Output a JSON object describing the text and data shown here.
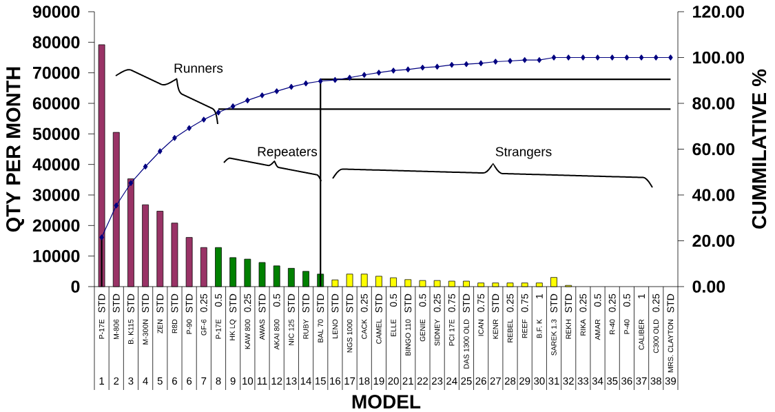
{
  "chart_data": {
    "type": "bar",
    "categories": [
      "P-17E",
      "M-806",
      "B. K115",
      "M-300N",
      "ZEN",
      "R8D",
      "P-90",
      "GF-6",
      "P-17E",
      "HK LQ",
      "KAW 800",
      "AWAS",
      "AKAI 800",
      "NIC 125",
      "RUBY",
      "BAL 70",
      "LENO",
      "NGS 1000",
      "CACK",
      "CAMEL",
      "ELLE",
      "BINGO 110",
      "GENIE",
      "SIDNEY",
      "PCI 17E",
      "DAS 1300 OLD",
      "ICAN",
      "KENR",
      "REBEL",
      "REEF",
      "B.F. K",
      "SAREK 1.3",
      "REKH",
      "RIKA",
      "AMAR",
      "R-40",
      "P-40",
      "CALIBER",
      "C300 OLD",
      "MRS. CLAYTON"
    ],
    "xlabel": "MODEL",
    "ylabel": "QTY PER MONTH",
    "y2label": "CUMMILATIVE %",
    "ylim": [
      0,
      90000
    ],
    "yticks": [
      0,
      10000,
      20000,
      30000,
      40000,
      50000,
      60000,
      70000,
      80000,
      90000
    ],
    "y2lim": [
      0,
      120
    ],
    "y2ticks": [
      {
        "value": 0,
        "label": "0.00"
      },
      {
        "value": 20,
        "label": "20.00"
      },
      {
        "value": 40,
        "label": "40.00"
      },
      {
        "value": 60,
        "label": "60.00"
      },
      {
        "value": 80,
        "label": "80.00"
      },
      {
        "value": 100,
        "label": "100.00"
      },
      {
        "value": 120,
        "label": "120.00"
      }
    ],
    "series": [
      {
        "colors": [
          "#993366",
          "#993366",
          "#993366",
          "#993366",
          "#993366",
          "#993366",
          "#993366",
          "#993366",
          "#008000",
          "#008000",
          "#008000",
          "#008000",
          "#008000",
          "#008000",
          "#008000",
          "#008000",
          "#ffff00",
          "#ffff00",
          "#ffff00",
          "#ffff00",
          "#ffff00",
          "#ffff00",
          "#ffff00",
          "#ffff00",
          "#ffff00",
          "#ffff00",
          "#ffff00",
          "#ffff00",
          "#ffff00",
          "#ffff00",
          "#ffff00",
          "#ffff00",
          "#ffff00",
          "#ffff00",
          "#ffff00",
          "#ffff00",
          "#ffff00",
          "#ffff00",
          "#ffff00",
          "#ffff00"
        ],
        "values": [
          79200,
          50500,
          35300,
          26800,
          24700,
          20800,
          16100,
          12800,
          12800,
          9500,
          9000,
          7900,
          6800,
          6000,
          5000,
          4100,
          2200,
          4100,
          4100,
          3400,
          2900,
          2300,
          2000,
          2000,
          1800,
          1800,
          1200,
          1200,
          1200,
          1200,
          1200,
          3000,
          400,
          0,
          0,
          0,
          0,
          0,
          0,
          0
        ]
      },
      {
        "type": "line",
        "axis": "y2",
        "color": "#000000",
        "values": [
          null,
          null,
          null,
          null,
          null,
          null,
          null,
          null,
          77.5,
          77.5,
          77.5,
          77.5,
          77.5,
          77.5,
          77.5,
          77.5,
          77.5,
          77.5,
          77.5,
          77.5,
          77.5,
          77.5,
          77.5,
          77.5,
          77.5,
          77.5,
          77.5,
          77.5,
          77.5,
          77.5,
          77.5,
          77.5,
          77.5,
          77.5,
          77.5,
          77.5,
          77.5,
          77.5,
          77.5,
          77.5
        ]
      },
      {
        "type": "line",
        "axis": "y2",
        "color": "#000000",
        "values": [
          null,
          null,
          null,
          null,
          null,
          null,
          null,
          null,
          null,
          null,
          null,
          null,
          null,
          null,
          null,
          90.5,
          90.5,
          90.5,
          90.5,
          90.5,
          90.5,
          90.5,
          90.5,
          90.5,
          90.5,
          90.5,
          90.5,
          90.5,
          90.5,
          90.5,
          90.5,
          90.5,
          90.5,
          90.5,
          90.5,
          90.5,
          90.5,
          90.5,
          90.5,
          90.5
        ]
      },
      {
        "type": "line",
        "axis": "y2",
        "color": "#000080",
        "marker": "diamond",
        "values": [
          21.5,
          35.4,
          45.2,
          52.4,
          59.1,
          64.9,
          69.2,
          72.9,
          76,
          78.7,
          81.3,
          83.5,
          85.3,
          87.2,
          88.7,
          89.7,
          90.2,
          91.2,
          92.4,
          93.4,
          94.3,
          94.8,
          95.6,
          96,
          96.8,
          97.1,
          97.5,
          98.2,
          98.5,
          98.9,
          98.9,
          100,
          100,
          100,
          100,
          100,
          100,
          100,
          100,
          100
        ]
      }
    ],
    "ref_lines": [
      {
        "axis": "x",
        "value": "P-17E",
        "color": "#000000"
      },
      {
        "axis": "x",
        "value": "BAL 70",
        "color": "#000000"
      }
    ],
    "annotations": [
      "Runners",
      "Repeaters",
      "Strangers",
      "STD",
      "STD",
      "STD",
      "STD",
      "STD",
      "STD",
      "STD",
      "0.25",
      "0.5",
      "STD",
      "0.25",
      "STD",
      "0.5",
      "STD",
      "STD",
      "STD",
      "STD",
      "STD",
      "0.25",
      "STD",
      "0.5",
      "STD",
      "0.5",
      "0.25",
      "0.75",
      "STD",
      "0.75",
      "STD",
      "0.25",
      "0.75",
      "1",
      "STD",
      "STD",
      "0.25",
      "0.5",
      "0.25",
      "0.5",
      "1",
      "0.25",
      "STD",
      "1",
      "2",
      "3",
      "4",
      "5",
      "6",
      "6",
      "7",
      "8",
      "9",
      "10",
      "11",
      "12",
      "13",
      "14",
      "15",
      "16",
      "17",
      "18",
      "19",
      "20",
      "21",
      "22",
      "23",
      "24",
      "25",
      "26",
      "27",
      "28",
      "29",
      "30",
      "31",
      "32",
      "33",
      "34",
      "35",
      "36",
      "37",
      "38",
      "39"
    ]
  }
}
